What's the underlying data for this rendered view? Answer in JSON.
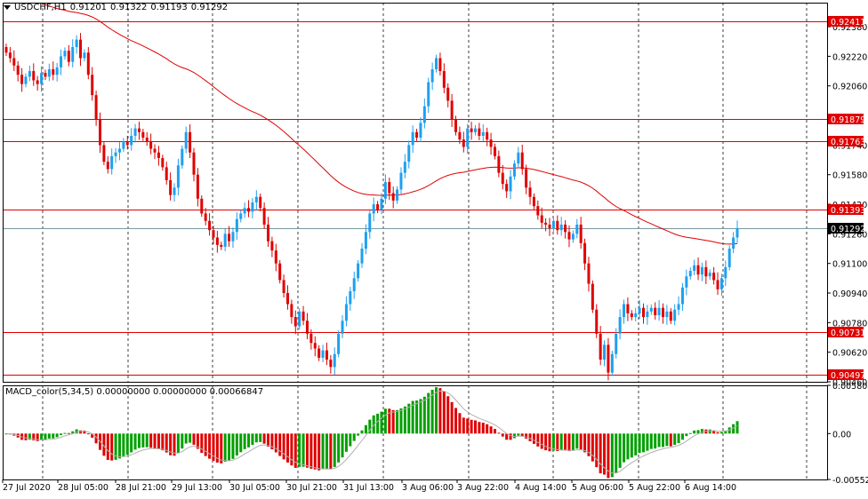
{
  "header": {
    "symbol": "USDCHF,H1",
    "open": "0.91201",
    "high": "0.91322",
    "low": "0.91193",
    "close": "0.91292"
  },
  "price_axis": {
    "ticks": [
      "0.92380",
      "0.92220",
      "0.92060",
      "0.91580",
      "0.91100",
      "0.90940",
      "0.90780",
      "0.90620",
      "0.90460"
    ],
    "partial_ticks": [
      "0.91740",
      "0.91420",
      "0.91260"
    ],
    "min": 0.9046,
    "max": 0.9251
  },
  "levels": [
    {
      "label": "0.92411",
      "value": 0.92411,
      "color": "#e00000"
    },
    {
      "label": "0.91879",
      "value": 0.91879,
      "color": "#e00000"
    },
    {
      "label": "0.91763",
      "value": 0.91763,
      "color": "#e00000"
    },
    {
      "label": "0.91393",
      "value": 0.91393,
      "color": "#e00000"
    },
    {
      "label": "0.90731",
      "value": 0.90731,
      "color": "#e00000"
    },
    {
      "label": "0.90497",
      "value": 0.90497,
      "color": "#e00000"
    }
  ],
  "current_price": {
    "label": "0.91292",
    "value": 0.91292
  },
  "macd": {
    "title": "MACD_color(5,34,5) 0.00000000 0.00000000 0.00066847",
    "ticks": [
      "0.0058081",
      "0.00",
      "-0.005528"
    ],
    "max": 0.0058081,
    "min": -0.005528
  },
  "time_axis": {
    "labels": [
      "27 Jul 2020",
      "28 Jul 05:00",
      "28 Jul 21:00",
      "29 Jul 13:00",
      "30 Jul 05:00",
      "30 Jul 21:00",
      "31 Jul 13:00",
      "3 Aug 06:00",
      "3 Aug 22:00",
      "4 Aug 14:00",
      "5 Aug 06:00",
      "5 Aug 22:00",
      "6 Aug 14:00"
    ]
  },
  "colors": {
    "bull": "#1ea0f0",
    "bear": "#e00000",
    "ma": "#e00000",
    "macd_up": "#00a000",
    "macd_down": "#e00000"
  },
  "chart_data": {
    "type": "candlestick",
    "close": [
      0.9224,
      0.9221,
      0.9217,
      0.9212,
      0.9207,
      0.9211,
      0.9214,
      0.9209,
      0.9207,
      0.9213,
      0.9211,
      0.9215,
      0.9212,
      0.9216,
      0.9222,
      0.9225,
      0.9219,
      0.9227,
      0.9231,
      0.9221,
      0.9224,
      0.9212,
      0.9201,
      0.9188,
      0.9174,
      0.9165,
      0.9161,
      0.9168,
      0.917,
      0.9172,
      0.9176,
      0.9174,
      0.9179,
      0.9183,
      0.9181,
      0.9178,
      0.9176,
      0.9172,
      0.917,
      0.9167,
      0.9162,
      0.9155,
      0.9147,
      0.9151,
      0.9163,
      0.9172,
      0.9181,
      0.917,
      0.9158,
      0.9145,
      0.9137,
      0.9133,
      0.9128,
      0.9124,
      0.912,
      0.9119,
      0.9126,
      0.9122,
      0.9127,
      0.9134,
      0.9137,
      0.914,
      0.9138,
      0.9143,
      0.9146,
      0.914,
      0.9131,
      0.9122,
      0.9117,
      0.911,
      0.9101,
      0.9094,
      0.9088,
      0.9081,
      0.9076,
      0.9084,
      0.9079,
      0.9072,
      0.9067,
      0.9064,
      0.9059,
      0.9063,
      0.9058,
      0.9054,
      0.9061,
      0.9072,
      0.9079,
      0.9088,
      0.9095,
      0.9102,
      0.911,
      0.9118,
      0.9127,
      0.9137,
      0.9142,
      0.9139,
      0.9145,
      0.9154,
      0.9148,
      0.9144,
      0.915,
      0.9159,
      0.9165,
      0.9174,
      0.9181,
      0.9178,
      0.9186,
      0.9195,
      0.9208,
      0.9215,
      0.9221,
      0.9214,
      0.9205,
      0.9198,
      0.9188,
      0.9181,
      0.9177,
      0.9173,
      0.9183,
      0.9181,
      0.9183,
      0.9179,
      0.9181,
      0.9177,
      0.9173,
      0.9168,
      0.9159,
      0.9153,
      0.9149,
      0.9157,
      0.9164,
      0.917,
      0.9161,
      0.9151,
      0.9146,
      0.9141,
      0.9136,
      0.9132,
      0.9131,
      0.9129,
      0.9133,
      0.9128,
      0.9131,
      0.9127,
      0.9123,
      0.9126,
      0.9131,
      0.9121,
      0.911,
      0.9099,
      0.9085,
      0.9072,
      0.9058,
      0.9066,
      0.9051,
      0.9061,
      0.9072,
      0.9081,
      0.9088,
      0.9083,
      0.9081,
      0.9083,
      0.9086,
      0.9081,
      0.9084,
      0.9086,
      0.9082,
      0.9086,
      0.9081,
      0.9084,
      0.9079,
      0.9085,
      0.9088,
      0.9097,
      0.9103,
      0.9106,
      0.9109,
      0.9104,
      0.9108,
      0.9103,
      0.9105,
      0.9101,
      0.9096,
      0.9102,
      0.9108,
      0.9118,
      0.9124,
      0.9129
    ]
  }
}
